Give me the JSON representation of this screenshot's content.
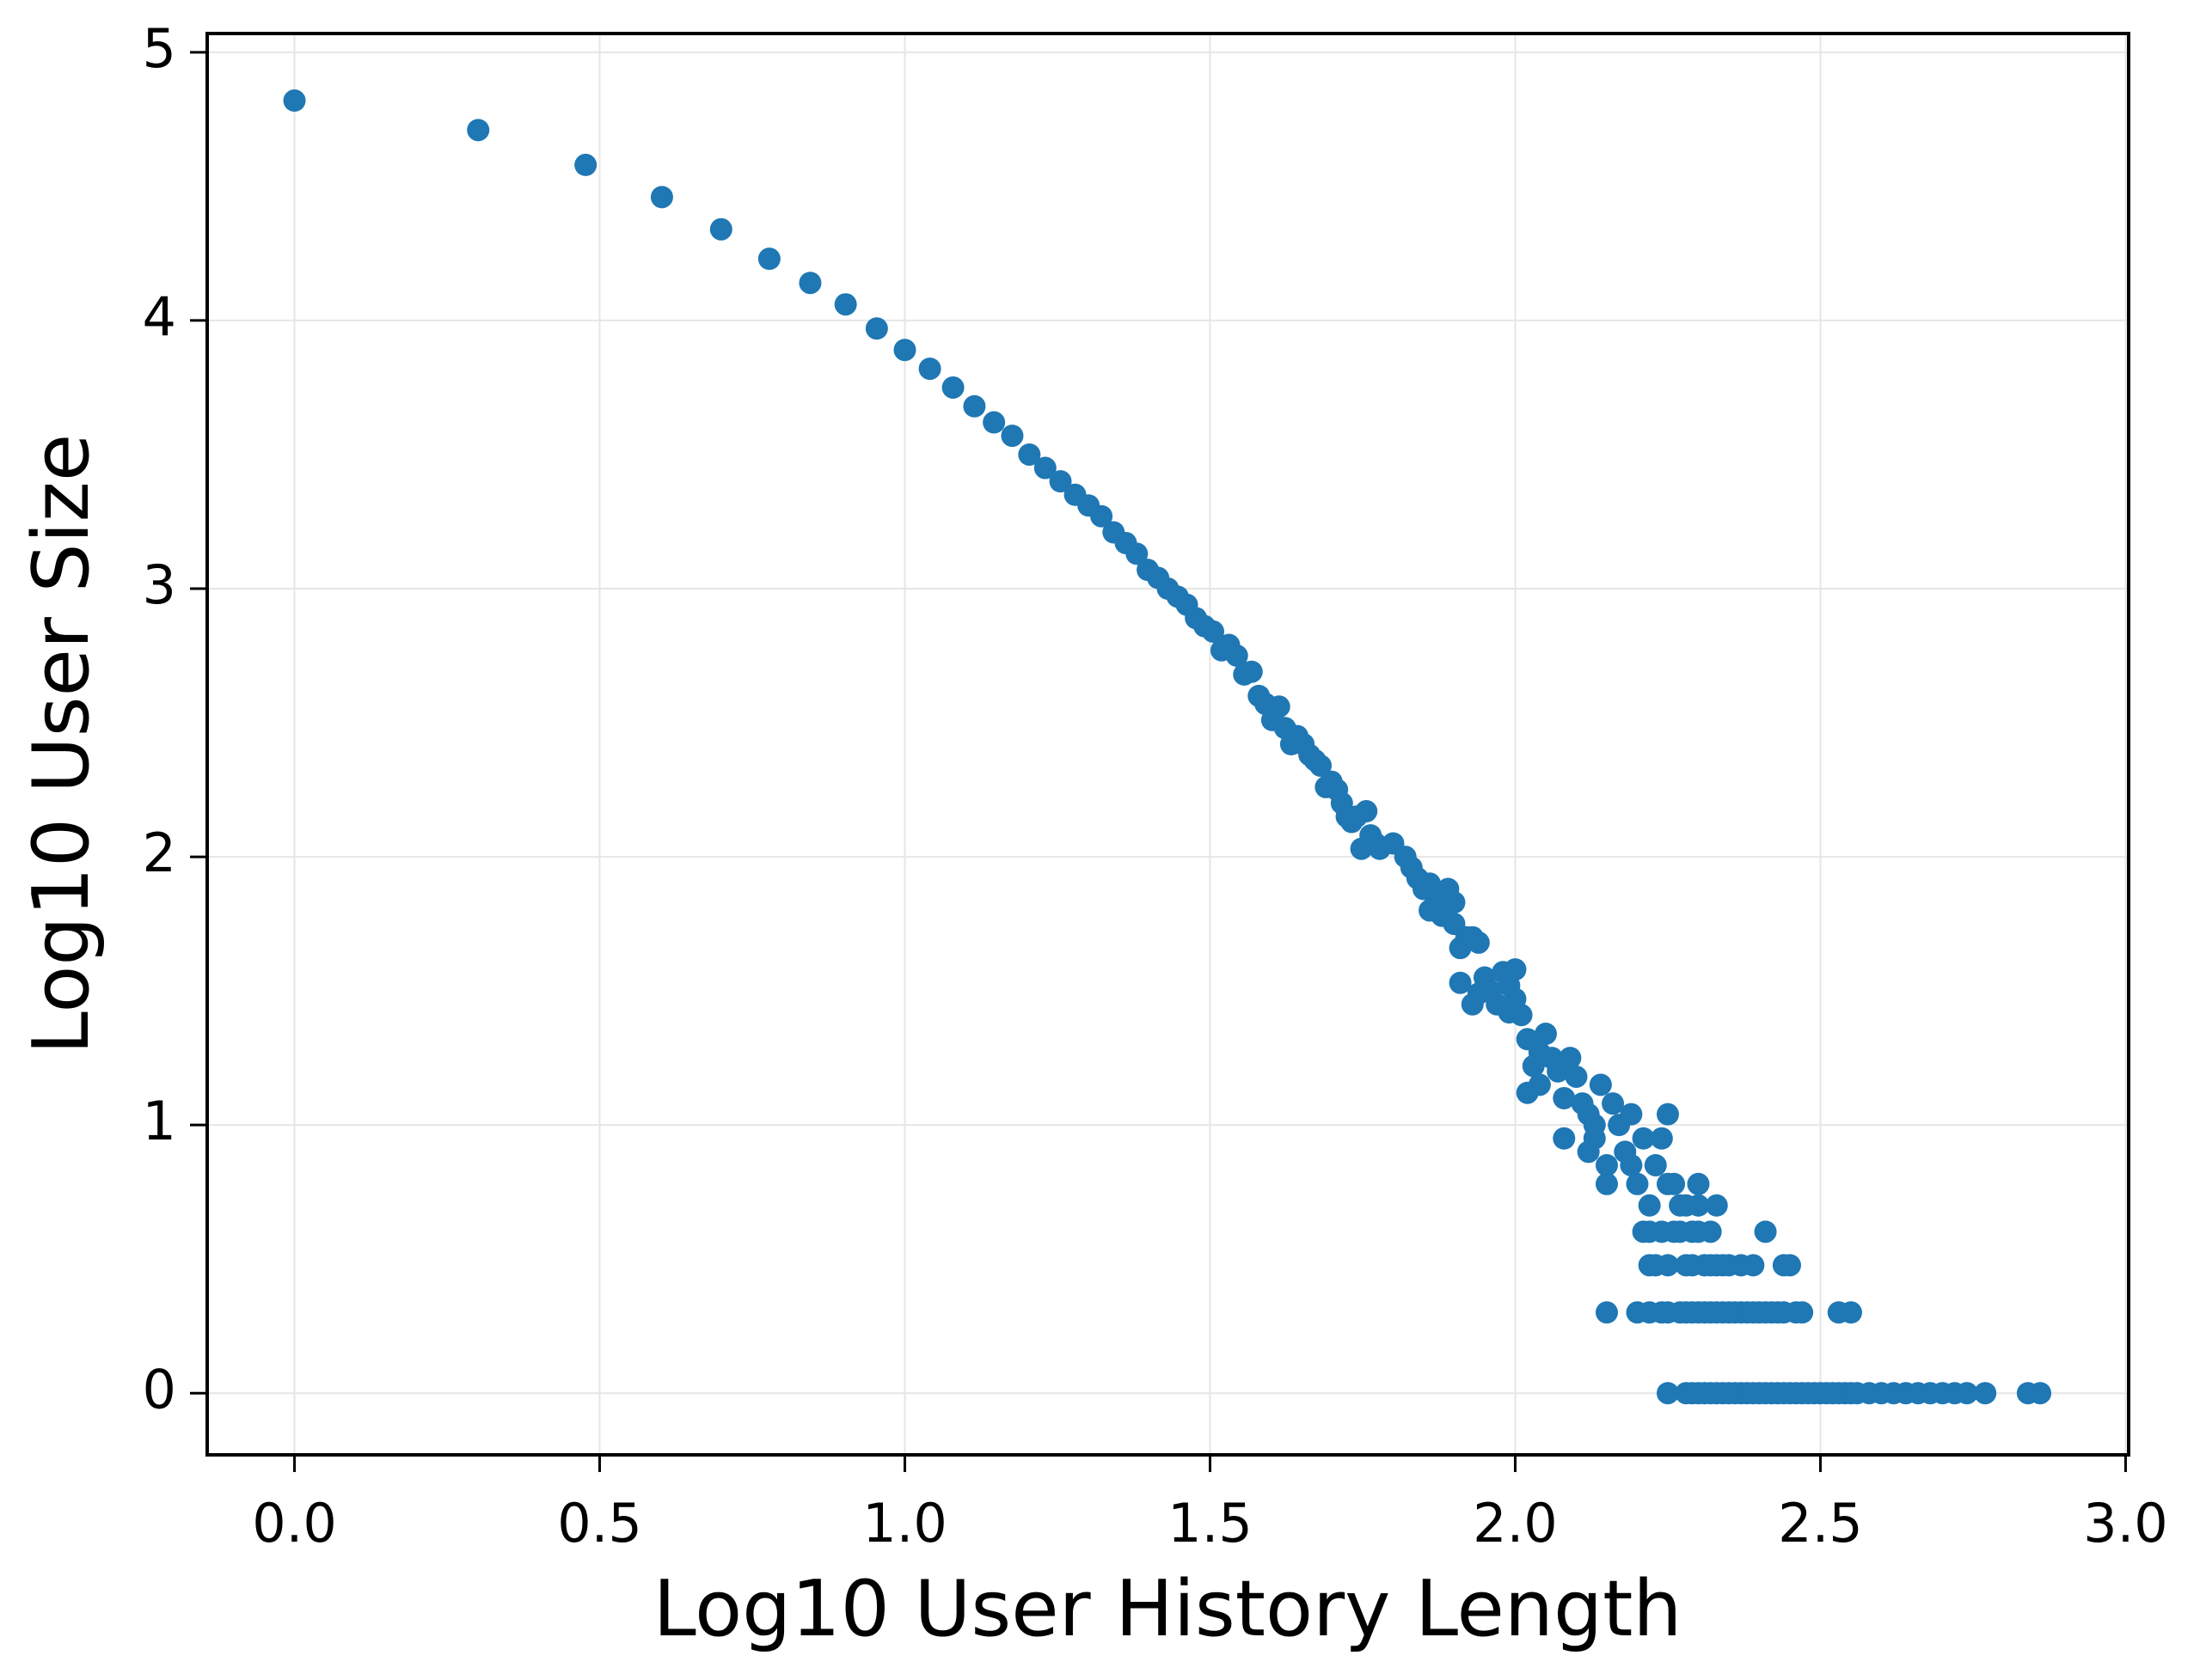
{
  "chart_data": {
    "type": "scatter",
    "x_label": "Log10 User History Length",
    "y_label": "Log10 User Size",
    "color": "#1f77b4",
    "grid": true,
    "xlim": [
      -0.143,
      3.005
    ],
    "ylim": [
      -0.23,
      5.07
    ],
    "xticks": [
      {
        "value": 0,
        "label": "0.0"
      },
      {
        "value": 0.5,
        "label": "0.5"
      },
      {
        "value": 1,
        "label": "1.0"
      },
      {
        "value": 1.5,
        "label": "1.5"
      },
      {
        "value": 2,
        "label": "2.0"
      },
      {
        "value": 2.5,
        "label": "2.5"
      },
      {
        "value": 3,
        "label": "3.0"
      }
    ],
    "yticks": [
      0,
      1,
      2,
      3,
      4,
      5
    ],
    "x": [
      0,
      0.301,
      0.477,
      0.602,
      0.699,
      0.778,
      0.845,
      0.903,
      0.954,
      1,
      1.041,
      1.079,
      1.114,
      1.146,
      1.176,
      1.204,
      1.23,
      1.255,
      1.279,
      1.301,
      1.322,
      1.342,
      1.362,
      1.38,
      1.398,
      1.415,
      1.431,
      1.447,
      1.462,
      1.477,
      1.491,
      1.505,
      1.519,
      1.531,
      1.544,
      1.556,
      1.568,
      1.58,
      1.591,
      1.602,
      1.613,
      1.623,
      1.633,
      1.643,
      1.653,
      1.663,
      1.672,
      1.681,
      1.69,
      1.699,
      1.708,
      1.716,
      1.724,
      1.732,
      1.74,
      1.748,
      1.756,
      1.763,
      1.771,
      1.778,
      1.8,
      1.82,
      1.83,
      1.84,
      1.85,
      1.86,
      1.87,
      1.86,
      1.88,
      1.89,
      1.9,
      1.9,
      1.91,
      1.92,
      1.93,
      1.94,
      1.91,
      1.93,
      1.94,
      1.95,
      1.96,
      1.97,
      1.98,
      1.99,
      2.0,
      1.99,
      2.0,
      2.01,
      2.02,
      2.03,
      2.04,
      2.05,
      2.06,
      2.02,
      2.04,
      2.07,
      2.08,
      2.09,
      2.1,
      2.08,
      2.11,
      2.12,
      2.13,
      2.14,
      2.12,
      2.13,
      2.15,
      2.15,
      2.16,
      2.17,
      2.18,
      2.19,
      2.19,
      2.2,
      2.21,
      2.22,
      2.23,
      2.24,
      2.25,
      2.25,
      2.26,
      2.27,
      2.28,
      2.3,
      2.3,
      2.33,
      2.21,
      2.22,
      2.24,
      2.26,
      2.27,
      2.29,
      2.3,
      2.32,
      2.41,
      2.22,
      2.23,
      2.25,
      2.28,
      2.29,
      2.31,
      2.32,
      2.33,
      2.34,
      2.35,
      2.37,
      2.39,
      2.44,
      2.45,
      2.15,
      2.2,
      2.22,
      2.24,
      2.25,
      2.27,
      2.28,
      2.29,
      2.3,
      2.31,
      2.32,
      2.33,
      2.34,
      2.35,
      2.36,
      2.37,
      2.38,
      2.39,
      2.4,
      2.41,
      2.42,
      2.43,
      2.44,
      2.46,
      2.47,
      2.53,
      2.55,
      2.25,
      2.28,
      2.29,
      2.3,
      2.31,
      2.32,
      2.33,
      2.34,
      2.35,
      2.36,
      2.37,
      2.38,
      2.39,
      2.4,
      2.41,
      2.42,
      2.43,
      2.44,
      2.45,
      2.46,
      2.47,
      2.48,
      2.49,
      2.5,
      2.51,
      2.52,
      2.53,
      2.54,
      2.55,
      2.56,
      2.58,
      2.6,
      2.62,
      2.64,
      2.66,
      2.68,
      2.7,
      2.72,
      2.74,
      2.77,
      2.84,
      2.86
    ],
    "values": [
      4.82,
      4.71,
      4.58,
      4.46,
      4.34,
      4.23,
      4.14,
      4.06,
      3.97,
      3.89,
      3.82,
      3.75,
      3.68,
      3.62,
      3.57,
      3.5,
      3.45,
      3.4,
      3.35,
      3.31,
      3.27,
      3.21,
      3.17,
      3.13,
      3.07,
      3.04,
      3.0,
      2.97,
      2.94,
      2.89,
      2.86,
      2.84,
      2.77,
      2.79,
      2.75,
      2.68,
      2.69,
      2.6,
      2.57,
      2.51,
      2.56,
      2.48,
      2.42,
      2.45,
      2.42,
      2.38,
      2.36,
      2.34,
      2.26,
      2.28,
      2.25,
      2.2,
      2.15,
      2.13,
      2.15,
      2.03,
      2.17,
      2.08,
      2.05,
      2.03,
      2.05,
      2.0,
      1.96,
      1.92,
      1.88,
      1.9,
      1.84,
      1.8,
      1.78,
      1.88,
      1.83,
      1.75,
      1.66,
      1.7,
      1.7,
      1.68,
      1.53,
      1.45,
      1.49,
      1.55,
      1.5,
      1.45,
      1.57,
      1.52,
      1.58,
      1.42,
      1.47,
      1.41,
      1.32,
      1.22,
      1.27,
      1.34,
      1.25,
      1.12,
      1.15,
      1.2,
      1.1,
      1.25,
      1.18,
      0.95,
      1.08,
      1.04,
      1.0,
      1.15,
      0.9,
      0.95,
      0.78,
      0.85,
      1.08,
      1.0,
      0.9,
      1.04,
      0.85,
      0.78,
      0.95,
      0.7,
      0.85,
      0.95,
      1.04,
      0.78,
      0.78,
      0.7,
      0.7,
      0.78,
      0.7,
      0.7,
      0.602,
      0.602,
      0.602,
      0.602,
      0.602,
      0.602,
      0.602,
      0.602,
      0.602,
      0.477,
      0.477,
      0.477,
      0.477,
      0.477,
      0.477,
      0.477,
      0.477,
      0.477,
      0.477,
      0.477,
      0.477,
      0.477,
      0.477,
      0.301,
      0.301,
      0.301,
      0.301,
      0.301,
      0.301,
      0.301,
      0.301,
      0.301,
      0.301,
      0.301,
      0.301,
      0.301,
      0.301,
      0.301,
      0.301,
      0.301,
      0.301,
      0.301,
      0.301,
      0.301,
      0.301,
      0.301,
      0.301,
      0.301,
      0.301,
      0.301,
      0,
      0,
      0,
      0,
      0,
      0,
      0,
      0,
      0,
      0,
      0,
      0,
      0,
      0,
      0,
      0,
      0,
      0,
      0,
      0,
      0,
      0,
      0,
      0,
      0,
      0,
      0,
      0,
      0,
      0,
      0,
      0,
      0,
      0,
      0,
      0,
      0,
      0,
      0,
      0,
      0,
      0
    ]
  }
}
